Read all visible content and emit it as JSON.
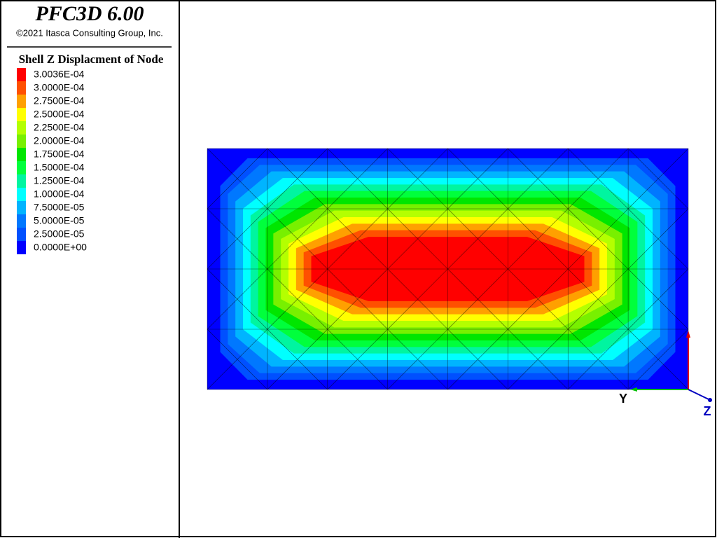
{
  "header": {
    "title": "PFC3D 6.00",
    "copyright": "©2021 Itasca Consulting Group, Inc."
  },
  "legend": {
    "title": "Shell Z Displacment of Node",
    "items": [
      {
        "label": "3.0036E-04",
        "color": "#ff0000"
      },
      {
        "label": "3.0000E-04",
        "color": "#ff5000"
      },
      {
        "label": "2.7500E-04",
        "color": "#ffa000"
      },
      {
        "label": "2.5000E-04",
        "color": "#ffff00"
      },
      {
        "label": "2.2500E-04",
        "color": "#b4ff00"
      },
      {
        "label": "2.0000E-04",
        "color": "#78f000"
      },
      {
        "label": "1.7500E-04",
        "color": "#00e600"
      },
      {
        "label": "1.5000E-04",
        "color": "#00ff3c"
      },
      {
        "label": "1.2500E-04",
        "color": "#00f5a0"
      },
      {
        "label": "1.0000E-04",
        "color": "#00ffff"
      },
      {
        "label": "7.5000E-05",
        "color": "#00b4ff"
      },
      {
        "label": "5.0000E-05",
        "color": "#0078ff"
      },
      {
        "label": "2.5000E-05",
        "color": "#0050ff"
      },
      {
        "label": "0.0000E+00",
        "color": "#0000ff"
      }
    ]
  },
  "axes": {
    "y_label": "Y",
    "z_label": "Z"
  }
}
